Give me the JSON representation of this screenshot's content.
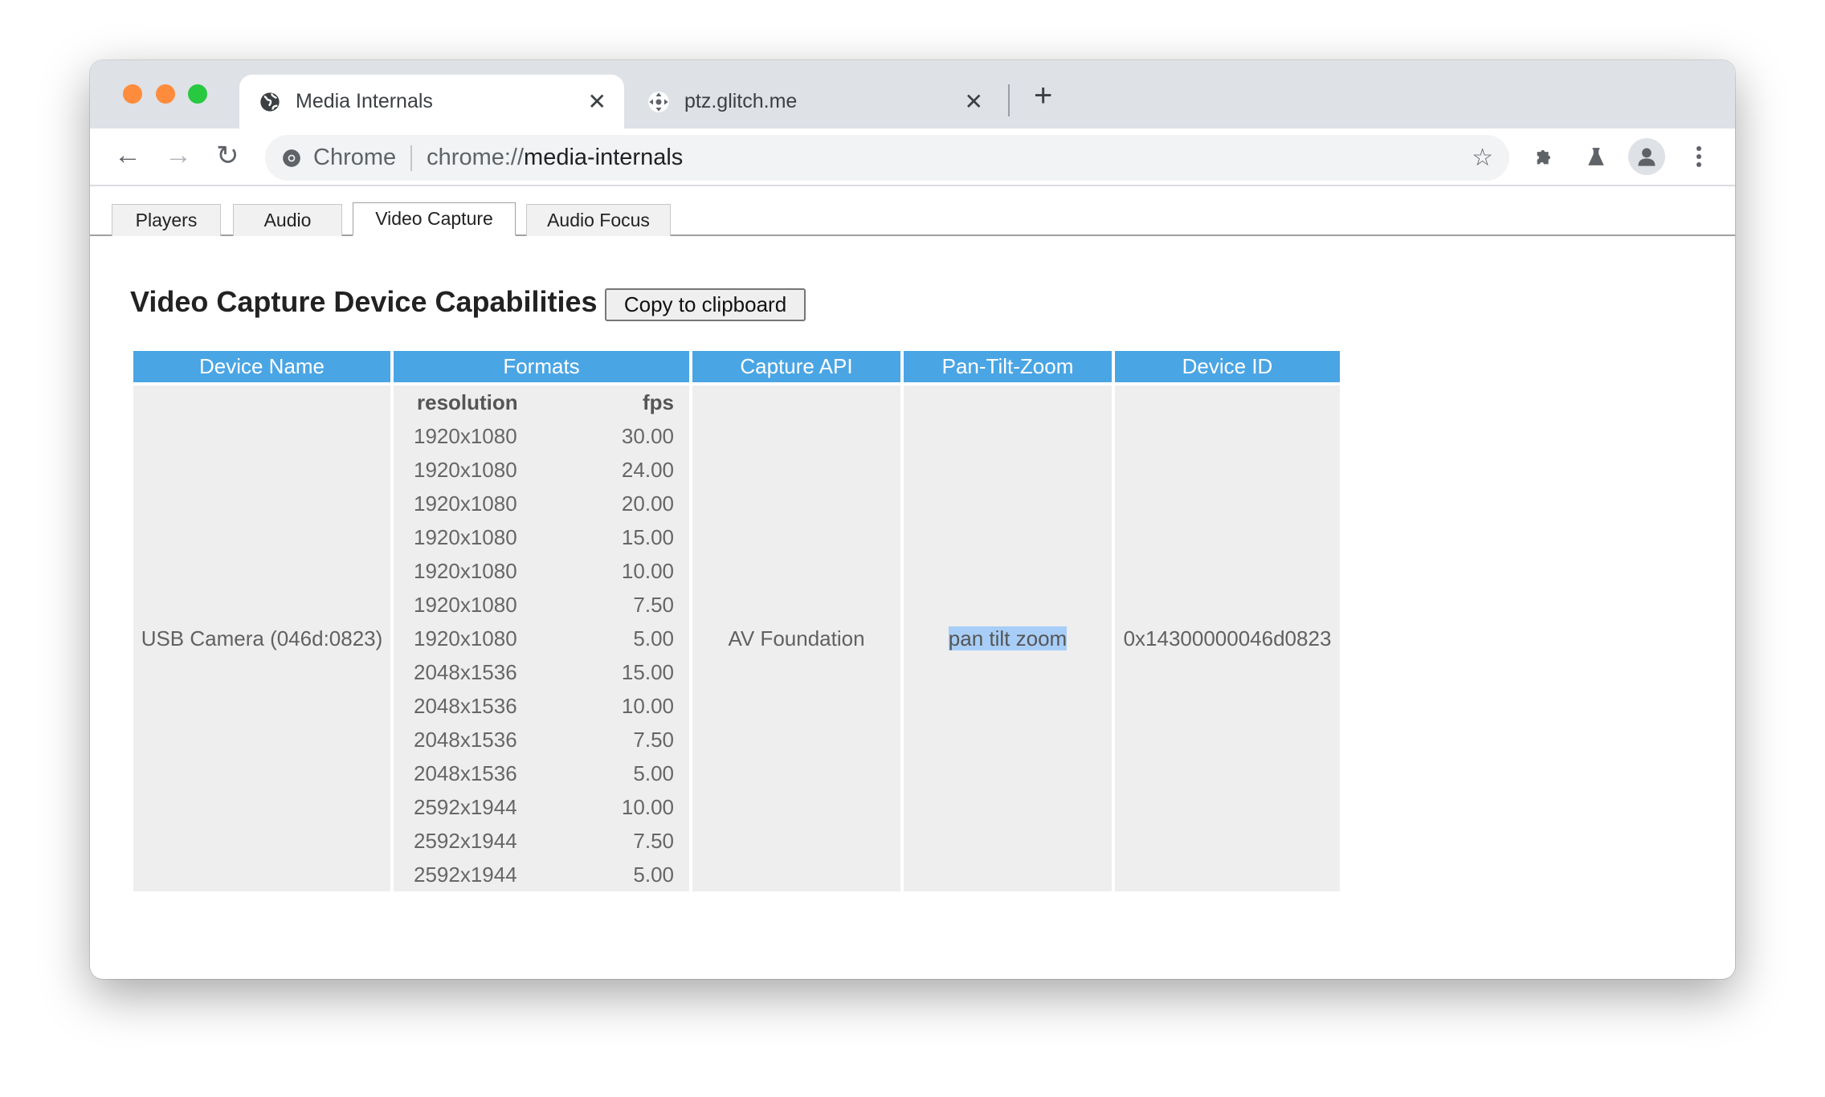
{
  "window_controls": {
    "close": "#fe5f57",
    "minimize": "#febc2e",
    "maximize": "#28c840"
  },
  "browser_tabs": [
    {
      "title": "Media Internals",
      "icon": "globe-icon",
      "active": true
    },
    {
      "title": "ptz.glitch.me",
      "icon": "move-icon",
      "active": false
    }
  ],
  "omnibox": {
    "chip": "Chrome",
    "url_scheme": "chrome://",
    "url_host": "media-internals"
  },
  "page_tabs": [
    "Players",
    "Audio",
    "Video Capture",
    "Audio Focus"
  ],
  "active_page_tab": "Video Capture",
  "heading": "Video Capture Device Capabilities",
  "copy_button": "Copy to clipboard",
  "table": {
    "headers": [
      "Device Name",
      "Formats",
      "Capture API",
      "Pan-Tilt-Zoom",
      "Device ID"
    ],
    "header_color": "#4aa5e4",
    "row": {
      "device_name": "USB Camera (046d:0823)",
      "formats_headers": [
        "resolution",
        "fps"
      ],
      "formats": [
        [
          "1920x1080",
          "30.00"
        ],
        [
          "1920x1080",
          "24.00"
        ],
        [
          "1920x1080",
          "20.00"
        ],
        [
          "1920x1080",
          "15.00"
        ],
        [
          "1920x1080",
          "10.00"
        ],
        [
          "1920x1080",
          "7.50"
        ],
        [
          "1920x1080",
          "5.00"
        ],
        [
          "2048x1536",
          "15.00"
        ],
        [
          "2048x1536",
          "10.00"
        ],
        [
          "2048x1536",
          "7.50"
        ],
        [
          "2048x1536",
          "5.00"
        ],
        [
          "2592x1944",
          "10.00"
        ],
        [
          "2592x1944",
          "7.50"
        ],
        [
          "2592x1944",
          "5.00"
        ]
      ],
      "capture_api": "AV Foundation",
      "ptz": "pan tilt zoom",
      "device_id": "0x14300000046d0823"
    }
  }
}
